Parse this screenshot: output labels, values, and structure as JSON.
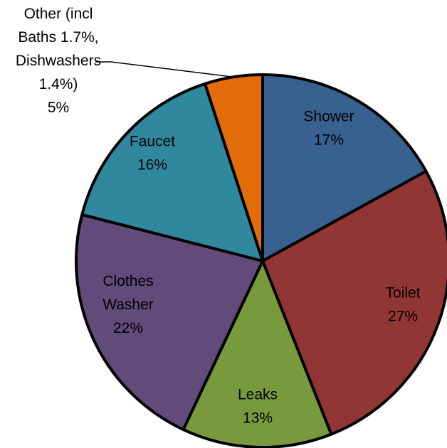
{
  "chart_data": {
    "type": "pie",
    "title": "",
    "start_angle_deg": 0,
    "direction": "clockwise",
    "outline_color": "#000000",
    "slices": [
      {
        "label_lines": [
          "Shower",
          "17%"
        ],
        "value": 17,
        "color": "#38618f"
      },
      {
        "label_lines": [
          "Toilet",
          "27%"
        ],
        "value": 27,
        "color": "#923635"
      },
      {
        "label_lines": [
          "Leaks",
          "13%"
        ],
        "value": 13,
        "color": "#789a3d"
      },
      {
        "label_lines": [
          "Clothes",
          "Washer",
          "22%"
        ],
        "value": 22,
        "color": "#624a7b"
      },
      {
        "label_lines": [
          "Faucet",
          "16%"
        ],
        "value": 16,
        "color": "#30889e"
      },
      {
        "label_lines": [
          "Other (incl",
          "Baths 1.7%,",
          "Dishwashers",
          "1.4%)",
          "5%"
        ],
        "value": 5,
        "color": "#e36c0a",
        "outside_label": true
      }
    ]
  }
}
